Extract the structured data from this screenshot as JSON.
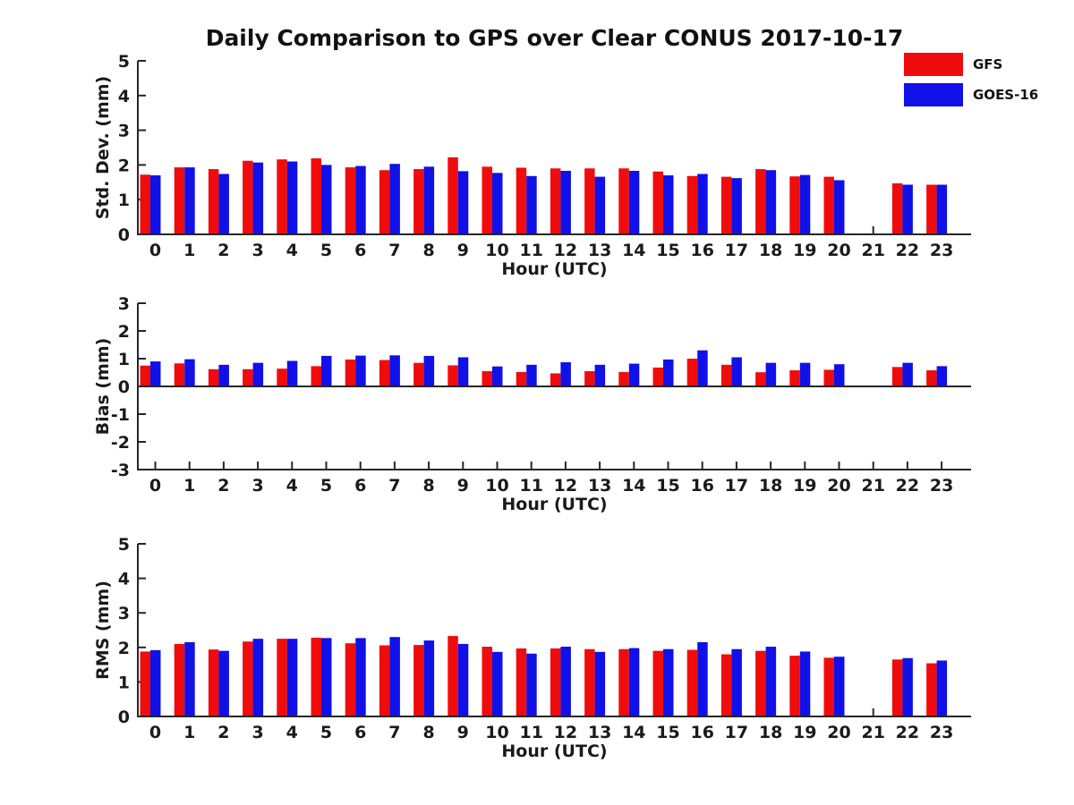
{
  "title": "Daily Comparison to GPS over Clear CONUS 2017-10-17",
  "legend": [
    {
      "label": "GFS",
      "color": "#f00c0c"
    },
    {
      "label": "GOES-16",
      "color": "#1010e8"
    }
  ],
  "colors": {
    "gfs_red": "#f00c0c",
    "goes16_blue": "#1010e8",
    "axis": "#262626",
    "text": "#1a1a1a",
    "background": "#ffffff"
  },
  "chart_data": [
    {
      "type": "bar",
      "title": "",
      "xlabel": "Hour (UTC)",
      "ylabel": "Std. Dev. (mm)",
      "ylim": [
        0,
        5
      ],
      "yticks": [
        0,
        1,
        2,
        3,
        4,
        5
      ],
      "grid": false,
      "legend_position": "upper-right-outside",
      "categories": [
        "0",
        "1",
        "2",
        "3",
        "4",
        "5",
        "6",
        "7",
        "8",
        "9",
        "10",
        "11",
        "12",
        "13",
        "14",
        "15",
        "16",
        "17",
        "18",
        "19",
        "20",
        "21",
        "22",
        "23"
      ],
      "series": [
        {
          "name": "GFS",
          "values": [
            1.72,
            1.93,
            1.88,
            2.12,
            2.16,
            2.19,
            1.93,
            1.85,
            1.88,
            2.22,
            1.95,
            1.92,
            1.9,
            1.9,
            1.9,
            1.81,
            1.68,
            1.66,
            1.88,
            1.67,
            1.66,
            null,
            1.47,
            1.43
          ]
        },
        {
          "name": "GOES-16",
          "values": [
            1.7,
            1.93,
            1.74,
            2.07,
            2.1,
            2.0,
            1.97,
            2.03,
            1.95,
            1.82,
            1.77,
            1.68,
            1.83,
            1.66,
            1.83,
            1.7,
            1.74,
            1.62,
            1.85,
            1.71,
            1.56,
            null,
            1.43,
            1.43
          ]
        }
      ]
    },
    {
      "type": "bar",
      "title": "",
      "xlabel": "Hour (UTC)",
      "ylabel": "Bias (mm)",
      "ylim": [
        -3,
        3
      ],
      "yticks": [
        -3,
        -2,
        -1,
        0,
        1,
        2,
        3
      ],
      "grid": false,
      "categories": [
        "0",
        "1",
        "2",
        "3",
        "4",
        "5",
        "6",
        "7",
        "8",
        "9",
        "10",
        "11",
        "12",
        "13",
        "14",
        "15",
        "16",
        "17",
        "18",
        "19",
        "20",
        "21",
        "22",
        "23"
      ],
      "series": [
        {
          "name": "GFS",
          "values": [
            0.75,
            0.83,
            0.62,
            0.62,
            0.64,
            0.73,
            0.97,
            0.95,
            0.85,
            0.76,
            0.55,
            0.52,
            0.47,
            0.55,
            0.52,
            0.68,
            1.0,
            0.78,
            0.51,
            0.58,
            0.6,
            null,
            0.7,
            0.58
          ]
        },
        {
          "name": "GOES-16",
          "values": [
            0.9,
            0.98,
            0.78,
            0.85,
            0.92,
            1.1,
            1.11,
            1.12,
            1.1,
            1.05,
            0.72,
            0.78,
            0.87,
            0.78,
            0.82,
            0.97,
            1.3,
            1.05,
            0.85,
            0.85,
            0.8,
            null,
            0.85,
            0.73
          ]
        }
      ]
    },
    {
      "type": "bar",
      "title": "",
      "xlabel": "Hour (UTC)",
      "ylabel": "RMS (mm)",
      "ylim": [
        0,
        5
      ],
      "yticks": [
        0,
        1,
        2,
        3,
        4,
        5
      ],
      "grid": false,
      "categories": [
        "0",
        "1",
        "2",
        "3",
        "4",
        "5",
        "6",
        "7",
        "8",
        "9",
        "10",
        "11",
        "12",
        "13",
        "14",
        "15",
        "16",
        "17",
        "18",
        "19",
        "20",
        "21",
        "22",
        "23"
      ],
      "series": [
        {
          "name": "GFS",
          "values": [
            1.88,
            2.1,
            1.94,
            2.17,
            2.25,
            2.28,
            2.12,
            2.06,
            2.07,
            2.33,
            2.02,
            1.97,
            1.97,
            1.95,
            1.95,
            1.9,
            1.93,
            1.8,
            1.9,
            1.76,
            1.7,
            null,
            1.65,
            1.54
          ]
        },
        {
          "name": "GOES-16",
          "values": [
            1.92,
            2.15,
            1.9,
            2.25,
            2.25,
            2.27,
            2.27,
            2.3,
            2.2,
            2.1,
            1.87,
            1.82,
            2.02,
            1.87,
            1.98,
            1.95,
            2.15,
            1.95,
            2.02,
            1.88,
            1.73,
            null,
            1.69,
            1.62
          ]
        }
      ]
    }
  ]
}
